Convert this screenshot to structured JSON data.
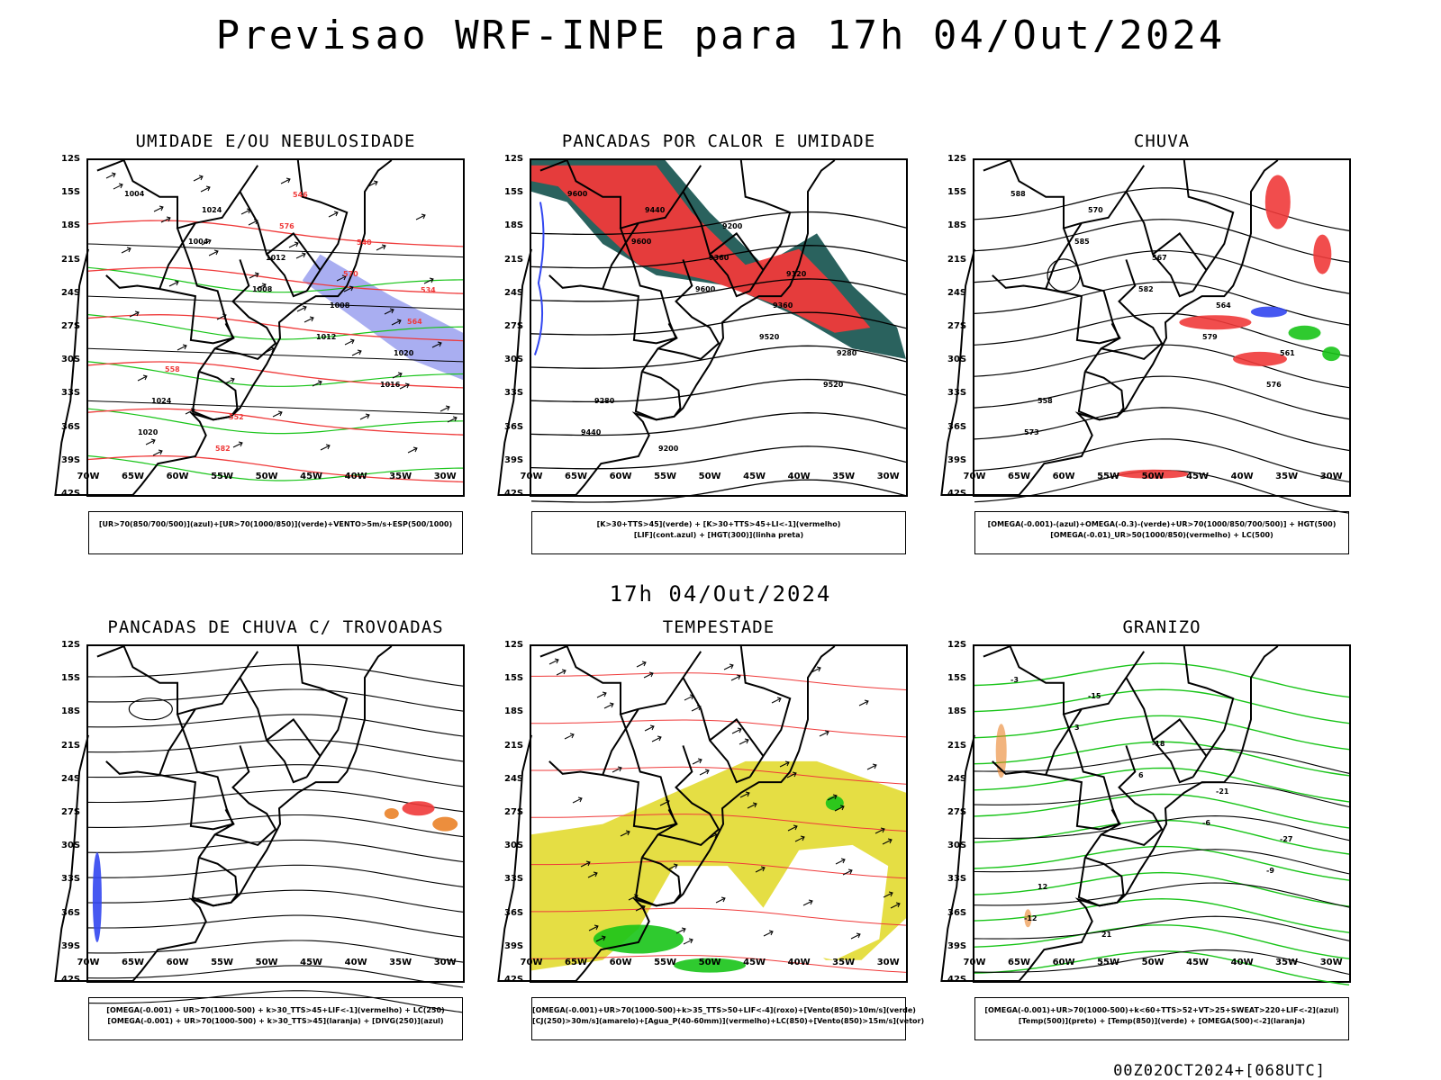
{
  "title": "Previsao WRF-INPE  para 17h 04/Out/2024",
  "mid_title": "17h 04/Out/2024",
  "footer": "00Z02OCT2024+[068UTC]",
  "lat_labels": [
    "12S",
    "15S",
    "18S",
    "21S",
    "24S",
    "27S",
    "30S",
    "33S",
    "36S",
    "39S",
    "42S"
  ],
  "lon_labels": [
    "70W",
    "65W",
    "60W",
    "55W",
    "50W",
    "45W",
    "40W",
    "35W",
    "30W"
  ],
  "panels": [
    {
      "title": "UMIDADE E/OU NEBULOSIDADE",
      "legend": [
        "[UR>70(850/700/500)](azul)+[UR>70(1000/850)](verde)+VENTO>5m/s+ESP(500/1000)"
      ],
      "contour_labels": [
        "1004",
        "1004",
        "1008",
        "1012",
        "1016",
        "1020",
        "1024",
        "1012",
        "1008",
        "1020",
        "1024",
        "582",
        "576",
        "570",
        "564",
        "558",
        "552",
        "546",
        "540",
        "534"
      ]
    },
    {
      "title": "PANCADAS POR CALOR E UMIDADE",
      "legend": [
        "[K>30+TTS>45](verde) + [K>30+TTS>45+LI<-1](vermelho)",
        "[LIF](cont.azul) + [HGT(300)](linha preta)"
      ],
      "contour_labels": [
        "9600",
        "9600",
        "9600",
        "9520",
        "9520",
        "9440",
        "9440",
        "9360",
        "9360",
        "9280",
        "9280",
        "9200",
        "9200",
        "9120"
      ]
    },
    {
      "title": "CHUVA",
      "legend": [
        "[OMEGA(-0.001)-(azul)+OMEGA(-0.3)-(verde)+UR>70(1000/850/700/500)] + HGT(500)",
        "[OMEGA(-0.01)_UR>50(1000/850)(vermelho) + LC(500)"
      ],
      "contour_labels": [
        "588",
        "585",
        "582",
        "579",
        "576",
        "573",
        "570",
        "567",
        "564",
        "561",
        "558"
      ]
    },
    {
      "title": "PANCADAS DE CHUVA C/ TROVOADAS",
      "legend": [
        "[OMEGA(-0.001) + UR>70(1000-500) + k>30_TTS>45+LIF<-1](vermelho) + LC(250)",
        "[OMEGA(-0.001) + UR>70(1000-500) + k>30_TTS>45](laranja) + [DIVG(250)](azul)"
      ],
      "contour_labels": []
    },
    {
      "title": "TEMPESTADE",
      "legend": [
        "[OMEGA(-0.001)+UR>70(1000-500)+k>35_TTS>50+LIF<-4](roxo)+[Vento(850)>10m/s](verde)",
        "[CJ(250)>30m/s](amarelo)+[Agua_P(40-60mm)](vermelho)+LC(850)+[Vento(850)>15m/s](vetor)"
      ],
      "contour_labels": []
    },
    {
      "title": "GRANIZO",
      "legend": [
        "[OMEGA(-0.001)+UR>70(1000-500)+k<60+TTS>52+VT>25+SWEAT>220+LIF<-2](azul)",
        "[Temp(500)](preto) + [Temp(850)](verde) + [OMEGA(500)<-2](laranja)"
      ],
      "contour_labels": [
        "-3",
        "3",
        "6",
        "-6",
        "-9",
        "-12",
        "-15",
        "-18",
        "-21",
        "-27",
        "12",
        "21"
      ]
    }
  ],
  "colors": {
    "red": "#ef3a3a",
    "green": "#18c418",
    "blue": "#3246f0",
    "lightblue": "#9aa0ee",
    "darkteal": "#1f5a55",
    "yellow": "#e4dc3a",
    "orange": "#ea8228",
    "salmon": "#f07060"
  }
}
